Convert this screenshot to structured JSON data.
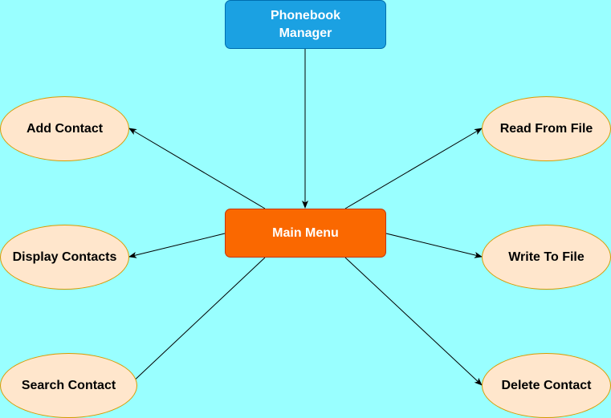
{
  "colors": {
    "background": "#99ffff",
    "title_fill": "#1ba1e2",
    "title_border": "#006eaf",
    "menu_fill": "#fa6800",
    "menu_border": "#c73500",
    "option_fill": "#ffe6cc",
    "option_border": "#d79b00",
    "edge": "#000000"
  },
  "nodes": {
    "title": {
      "label_line1": "Phonebook",
      "label_line2": "Manager"
    },
    "menu": {
      "label": "Main Menu"
    },
    "add": {
      "label": "Add Contact"
    },
    "display": {
      "label": "Display Contacts"
    },
    "search": {
      "label": "Search Contact"
    },
    "read": {
      "label": "Read From File"
    },
    "write": {
      "label": "Write To File"
    },
    "delete": {
      "label": "Delete Contact"
    }
  },
  "edges": [
    {
      "from": "title",
      "to": "menu"
    },
    {
      "from": "menu",
      "to": "add"
    },
    {
      "from": "menu",
      "to": "display"
    },
    {
      "from": "menu",
      "to": "search"
    },
    {
      "from": "menu",
      "to": "read"
    },
    {
      "from": "menu",
      "to": "write"
    },
    {
      "from": "menu",
      "to": "delete"
    }
  ]
}
